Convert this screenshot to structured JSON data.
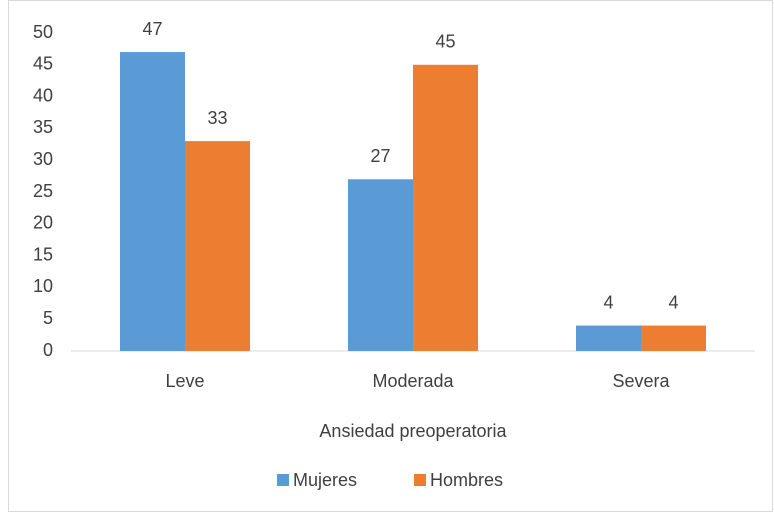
{
  "chart_data": {
    "type": "bar",
    "categories": [
      "Leve",
      "Moderada",
      "Severa"
    ],
    "series": [
      {
        "name": "Mujeres",
        "color": "#5b9bd5",
        "values": [
          47,
          27,
          4
        ]
      },
      {
        "name": "Hombres",
        "color": "#ed7d31",
        "values": [
          33,
          45,
          4
        ]
      }
    ],
    "ylim": [
      0,
      50
    ],
    "yticks": [
      0,
      5,
      10,
      15,
      20,
      25,
      30,
      35,
      40,
      45,
      50
    ],
    "x_label": "Ansiedad preoperatoria",
    "grid": false,
    "legend": "bottom"
  }
}
